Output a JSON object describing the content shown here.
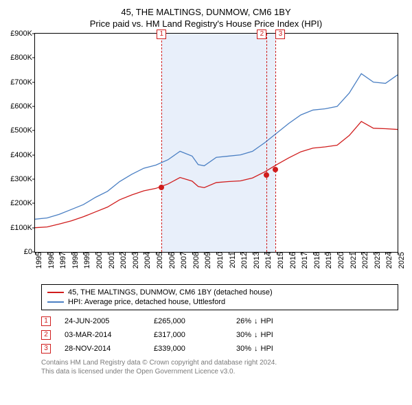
{
  "title_line1": "45, THE MALTINGS, DUNMOW, CM6 1BY",
  "title_line2": "Price paid vs. HM Land Registry's House Price Index (HPI)",
  "chart": {
    "type": "line",
    "x_start_year": 1995,
    "x_end_year": 2025,
    "xtick_years": [
      1995,
      1996,
      1997,
      1998,
      1999,
      2000,
      2001,
      2002,
      2003,
      2004,
      2005,
      2006,
      2007,
      2008,
      2009,
      2010,
      2011,
      2012,
      2013,
      2014,
      2015,
      2016,
      2017,
      2018,
      2019,
      2020,
      2021,
      2022,
      2023,
      2024,
      2025
    ],
    "y_min": 0,
    "y_max": 900000,
    "ytick_step": 100000,
    "ytick_labels": [
      "£0",
      "£100K",
      "£200K",
      "£300K",
      "£400K",
      "£500K",
      "£600K",
      "£700K",
      "£800K",
      "£900K"
    ],
    "background_color": "#ffffff",
    "shaded_region": {
      "from_year": 2005.47,
      "to_year": 2014.91,
      "fill": "#e8effa"
    },
    "axis_color": "#000000",
    "tick_fontsize": 11,
    "series": [
      {
        "name": "hpi",
        "label": "HPI: Average price, detached house, Uttlesford",
        "color": "#4a7fc3",
        "line_width": 1.3,
        "data": [
          [
            1995.0,
            135000
          ],
          [
            1996.0,
            140000
          ],
          [
            1997.0,
            155000
          ],
          [
            1998.0,
            175000
          ],
          [
            1999.0,
            195000
          ],
          [
            2000.0,
            225000
          ],
          [
            2001.0,
            250000
          ],
          [
            2002.0,
            290000
          ],
          [
            2003.0,
            320000
          ],
          [
            2004.0,
            345000
          ],
          [
            2005.0,
            358000
          ],
          [
            2006.0,
            380000
          ],
          [
            2007.0,
            415000
          ],
          [
            2008.0,
            395000
          ],
          [
            2008.5,
            360000
          ],
          [
            2009.0,
            355000
          ],
          [
            2010.0,
            390000
          ],
          [
            2011.0,
            395000
          ],
          [
            2012.0,
            400000
          ],
          [
            2013.0,
            415000
          ],
          [
            2014.0,
            450000
          ],
          [
            2015.0,
            490000
          ],
          [
            2016.0,
            530000
          ],
          [
            2017.0,
            565000
          ],
          [
            2018.0,
            585000
          ],
          [
            2019.0,
            590000
          ],
          [
            2020.0,
            600000
          ],
          [
            2021.0,
            655000
          ],
          [
            2022.0,
            735000
          ],
          [
            2023.0,
            700000
          ],
          [
            2024.0,
            695000
          ],
          [
            2025.0,
            730000
          ]
        ]
      },
      {
        "name": "price_paid",
        "label": "45, THE MALTINGS, DUNMOW, CM6 1BY (detached house)",
        "color": "#d01c1c",
        "line_width": 1.3,
        "data": [
          [
            1995.0,
            100000
          ],
          [
            1996.0,
            103000
          ],
          [
            1997.0,
            115000
          ],
          [
            1998.0,
            128000
          ],
          [
            1999.0,
            145000
          ],
          [
            2000.0,
            165000
          ],
          [
            2001.0,
            185000
          ],
          [
            2002.0,
            215000
          ],
          [
            2003.0,
            235000
          ],
          [
            2004.0,
            252000
          ],
          [
            2005.0,
            262000
          ],
          [
            2006.0,
            280000
          ],
          [
            2007.0,
            307000
          ],
          [
            2008.0,
            292000
          ],
          [
            2008.5,
            270000
          ],
          [
            2009.0,
            265000
          ],
          [
            2010.0,
            286000
          ],
          [
            2011.0,
            290000
          ],
          [
            2012.0,
            293000
          ],
          [
            2013.0,
            305000
          ],
          [
            2014.0,
            330000
          ],
          [
            2015.0,
            360000
          ],
          [
            2016.0,
            388000
          ],
          [
            2017.0,
            413000
          ],
          [
            2018.0,
            428000
          ],
          [
            2019.0,
            433000
          ],
          [
            2020.0,
            440000
          ],
          [
            2021.0,
            480000
          ],
          [
            2022.0,
            538000
          ],
          [
            2023.0,
            510000
          ],
          [
            2024.0,
            508000
          ],
          [
            2025.0,
            505000
          ]
        ]
      }
    ],
    "events": [
      {
        "n": "1",
        "year": 2005.47,
        "color": "#d01c1c"
      },
      {
        "n": "2",
        "year": 2014.17,
        "color": "#d01c1c"
      },
      {
        "n": "3",
        "year": 2014.91,
        "color": "#d01c1c"
      }
    ],
    "sale_points": [
      {
        "year": 2005.47,
        "value": 265000,
        "fill": "#d01c1c"
      },
      {
        "year": 2014.17,
        "value": 317000,
        "fill": "#d01c1c"
      },
      {
        "year": 2014.91,
        "value": 339000,
        "fill": "#d01c1c"
      }
    ]
  },
  "legend": {
    "rows": [
      {
        "color": "#d01c1c",
        "label": "45, THE MALTINGS, DUNMOW, CM6 1BY (detached house)"
      },
      {
        "color": "#4a7fc3",
        "label": "HPI: Average price, detached house, Uttlesford"
      }
    ]
  },
  "events_table": {
    "rows": [
      {
        "n": "1",
        "date": "24-JUN-2005",
        "price": "£265,000",
        "delta_pct": "26%",
        "arrow": "↓",
        "delta_label": "HPI",
        "badge_color": "#d01c1c"
      },
      {
        "n": "2",
        "date": "03-MAR-2014",
        "price": "£317,000",
        "delta_pct": "30%",
        "arrow": "↓",
        "delta_label": "HPI",
        "badge_color": "#d01c1c"
      },
      {
        "n": "3",
        "date": "28-NOV-2014",
        "price": "£339,000",
        "delta_pct": "30%",
        "arrow": "↓",
        "delta_label": "HPI",
        "badge_color": "#d01c1c"
      }
    ]
  },
  "footnote_line1": "Contains HM Land Registry data © Crown copyright and database right 2024.",
  "footnote_line2": "This data is licensed under the Open Government Licence v3.0."
}
